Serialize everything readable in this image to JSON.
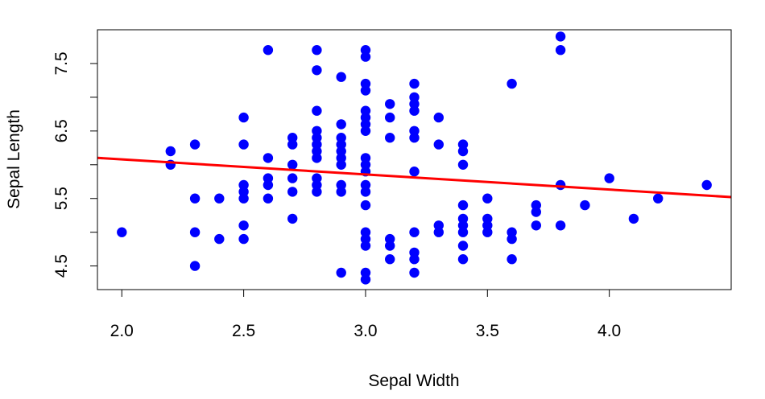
{
  "chart_data": {
    "type": "scatter",
    "title": "",
    "xlabel": "Sepal Width",
    "ylabel": "Sepal Length",
    "xlim": [
      1.9,
      4.5
    ],
    "ylim": [
      4.15,
      8.0
    ],
    "x_ticks": [
      2.0,
      2.5,
      3.0,
      3.5,
      4.0
    ],
    "x_tick_labels": [
      "2.0",
      "2.5",
      "3.0",
      "3.5",
      "4.0"
    ],
    "y_ticks": [
      4.5,
      5.0,
      5.5,
      6.0,
      6.5,
      7.0,
      7.5
    ],
    "y_tick_labels": [
      "4.5",
      "",
      "5.5",
      "",
      "6.5",
      "",
      "7.5"
    ],
    "grid": false,
    "legend": "none",
    "point_color": "#0000FF",
    "line_color": "#FF0000",
    "points": [
      [
        2.0,
        5.0
      ],
      [
        2.2,
        6.2
      ],
      [
        2.2,
        6.0
      ],
      [
        2.3,
        6.3
      ],
      [
        2.3,
        5.5
      ],
      [
        2.3,
        5.0
      ],
      [
        2.3,
        4.5
      ],
      [
        2.4,
        5.5
      ],
      [
        2.4,
        4.9
      ],
      [
        2.5,
        6.7
      ],
      [
        2.5,
        6.3
      ],
      [
        2.5,
        5.7
      ],
      [
        2.5,
        5.6
      ],
      [
        2.5,
        5.5
      ],
      [
        2.5,
        5.1
      ],
      [
        2.5,
        4.9
      ],
      [
        2.6,
        7.7
      ],
      [
        2.6,
        6.1
      ],
      [
        2.6,
        5.8
      ],
      [
        2.6,
        5.7
      ],
      [
        2.6,
        5.5
      ],
      [
        2.7,
        6.4
      ],
      [
        2.7,
        6.3
      ],
      [
        2.7,
        6.0
      ],
      [
        2.7,
        5.8
      ],
      [
        2.7,
        5.6
      ],
      [
        2.7,
        5.2
      ],
      [
        2.8,
        7.7
      ],
      [
        2.8,
        7.4
      ],
      [
        2.8,
        6.8
      ],
      [
        2.8,
        6.5
      ],
      [
        2.8,
        6.4
      ],
      [
        2.8,
        6.3
      ],
      [
        2.8,
        6.2
      ],
      [
        2.8,
        6.1
      ],
      [
        2.8,
        5.8
      ],
      [
        2.8,
        5.7
      ],
      [
        2.8,
        5.6
      ],
      [
        2.9,
        7.3
      ],
      [
        2.9,
        6.6
      ],
      [
        2.9,
        6.4
      ],
      [
        2.9,
        6.3
      ],
      [
        2.9,
        6.2
      ],
      [
        2.9,
        6.1
      ],
      [
        2.9,
        6.0
      ],
      [
        2.9,
        5.7
      ],
      [
        2.9,
        5.6
      ],
      [
        2.9,
        4.4
      ],
      [
        3.0,
        7.7
      ],
      [
        3.0,
        7.6
      ],
      [
        3.0,
        7.2
      ],
      [
        3.0,
        7.1
      ],
      [
        3.0,
        6.8
      ],
      [
        3.0,
        6.7
      ],
      [
        3.0,
        6.6
      ],
      [
        3.0,
        6.5
      ],
      [
        3.0,
        6.1
      ],
      [
        3.0,
        6.0
      ],
      [
        3.0,
        5.9
      ],
      [
        3.0,
        5.7
      ],
      [
        3.0,
        5.6
      ],
      [
        3.0,
        5.4
      ],
      [
        3.0,
        5.0
      ],
      [
        3.0,
        4.9
      ],
      [
        3.0,
        4.8
      ],
      [
        3.0,
        4.4
      ],
      [
        3.0,
        4.3
      ],
      [
        3.1,
        6.9
      ],
      [
        3.1,
        6.7
      ],
      [
        3.1,
        6.4
      ],
      [
        3.1,
        4.9
      ],
      [
        3.1,
        4.8
      ],
      [
        3.1,
        4.6
      ],
      [
        3.2,
        7.2
      ],
      [
        3.2,
        7.0
      ],
      [
        3.2,
        6.9
      ],
      [
        3.2,
        6.8
      ],
      [
        3.2,
        6.5
      ],
      [
        3.2,
        6.4
      ],
      [
        3.2,
        5.9
      ],
      [
        3.2,
        5.0
      ],
      [
        3.2,
        4.7
      ],
      [
        3.2,
        4.6
      ],
      [
        3.2,
        4.4
      ],
      [
        3.3,
        6.7
      ],
      [
        3.3,
        6.3
      ],
      [
        3.3,
        5.1
      ],
      [
        3.3,
        5.0
      ],
      [
        3.4,
        6.3
      ],
      [
        3.4,
        6.2
      ],
      [
        3.4,
        6.0
      ],
      [
        3.4,
        5.4
      ],
      [
        3.4,
        5.2
      ],
      [
        3.4,
        5.1
      ],
      [
        3.4,
        5.0
      ],
      [
        3.4,
        4.8
      ],
      [
        3.4,
        4.6
      ],
      [
        3.5,
        5.5
      ],
      [
        3.5,
        5.2
      ],
      [
        3.5,
        5.1
      ],
      [
        3.5,
        5.0
      ],
      [
        3.6,
        7.2
      ],
      [
        3.6,
        5.0
      ],
      [
        3.6,
        4.9
      ],
      [
        3.6,
        4.6
      ],
      [
        3.7,
        5.4
      ],
      [
        3.7,
        5.3
      ],
      [
        3.7,
        5.1
      ],
      [
        3.8,
        7.9
      ],
      [
        3.8,
        7.7
      ],
      [
        3.8,
        5.7
      ],
      [
        3.8,
        5.1
      ],
      [
        3.9,
        5.4
      ],
      [
        4.0,
        5.8
      ],
      [
        4.1,
        5.2
      ],
      [
        4.2,
        5.5
      ],
      [
        4.4,
        5.7
      ]
    ],
    "trend_line": {
      "slope": -0.2234,
      "intercept": 6.5262
    }
  }
}
